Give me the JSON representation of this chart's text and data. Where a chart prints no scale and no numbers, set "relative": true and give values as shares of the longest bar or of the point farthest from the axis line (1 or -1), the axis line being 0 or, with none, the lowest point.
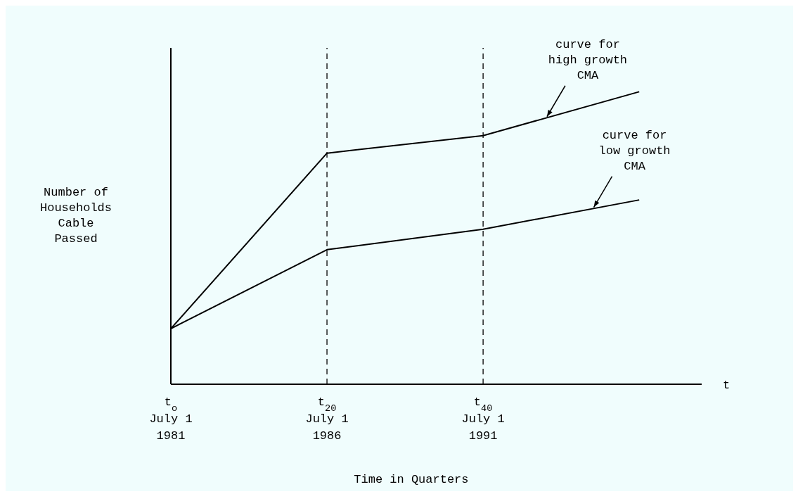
{
  "chart_data": {
    "type": "line",
    "relative": true,
    "xlabel": "Time in Quarters",
    "ylabel": "Number of\nHouseholds\nCable\nPassed",
    "categories": [
      "t$_{o}$\nJuly 1\n1981",
      "t$_{20}$\nJuly 1\n1986",
      "t$_{40}$\nJuly 1\n1991",
      null
    ],
    "series": [
      {
        "color": "#000000",
        "values": [
          0.19,
          0.79,
          0.85,
          1
        ]
      },
      {
        "color": "#000000",
        "values": [
          0.19,
          0.46,
          0.53,
          0.63
        ]
      }
    ],
    "ref_lines": [
      {
        "axis": "x",
        "value": "t$_{20}$\nJuly 1\n1986",
        "color": "#000000",
        "line_style": "dashed"
      },
      {
        "axis": "x",
        "value": "t$_{40}$\nJuly 1\n1991",
        "color": "#000000",
        "line_style": "dashed"
      }
    ],
    "annotations": [
      "curve for high growth CMA",
      "curve for low growth CMA",
      "t"
    ],
    "grid": false,
    "legend": false,
    "marker": "none",
    "line_style": "solid"
  }
}
